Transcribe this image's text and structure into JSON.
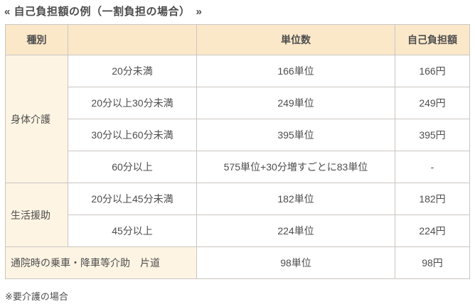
{
  "title": "« 自己負担額の例（一割負担の場合）　»",
  "colors": {
    "header_bg": "#fbe8c9",
    "category_bg": "#fdf4e3",
    "border": "#c9c6c2",
    "text": "#4d4d4d",
    "page_bg": "#ffffff"
  },
  "table": {
    "headers": {
      "type": "種別",
      "blank": "",
      "units": "単位数",
      "copay": "自己負担額"
    },
    "categories": {
      "physical": "身体介護",
      "daily_life": "生活援助"
    },
    "rows": [
      {
        "time": "20分未満",
        "units": "166単位",
        "copay": "166円"
      },
      {
        "time": "20分以上30分未満",
        "units": "249単位",
        "copay": "249円"
      },
      {
        "time": "30分以上60分未満",
        "units": "395単位",
        "copay": "395円"
      },
      {
        "time": "60分以上",
        "units": "575単位+30分増すごとに83単位",
        "copay": "-"
      },
      {
        "time": "20分以上45分未満",
        "units": "182単位",
        "copay": "182円"
      },
      {
        "time": "45分以上",
        "units": "224単位",
        "copay": "224円"
      }
    ],
    "transport_row": {
      "label": "通院時の乗車・降車等介助　片道",
      "units": "98単位",
      "copay": "98円"
    }
  },
  "footnote": "※要介護の場合"
}
